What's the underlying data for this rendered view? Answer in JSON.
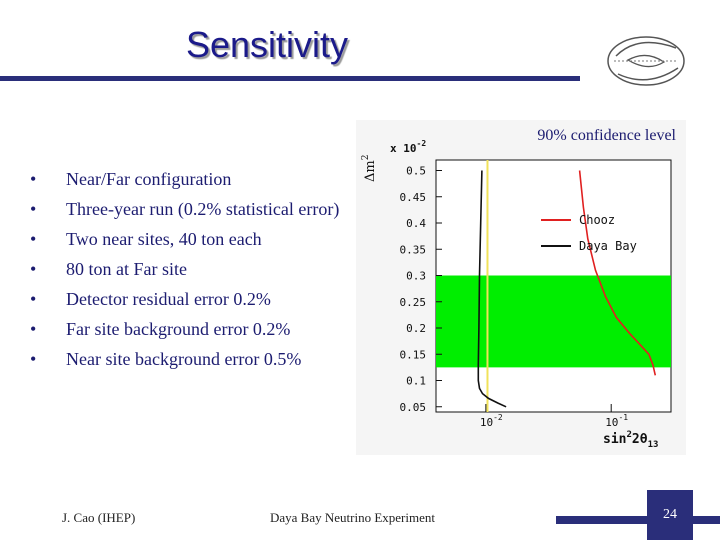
{
  "slide": {
    "title": "Sensitivity",
    "bullets": [
      "Near/Far configuration",
      "Three-year run (0.2% statistical error)",
      "Two near sites, 40 ton each",
      "80 ton at Far site",
      "Detector residual error 0.2%",
      "Far site background error 0.2%",
      "Near site background error 0.5%"
    ],
    "bullet_symbol": "•",
    "footer_author": "J. Cao (IHEP)",
    "footer_center": "Daya Bay Neutrino Experiment",
    "page_number": "24",
    "accent_color": "#2a2e7a",
    "title_color": "#1b1a8a"
  },
  "plot": {
    "confidence_label": "90% confidence level",
    "y_multiplier": "x 10",
    "y_multiplier_exp": "-2",
    "ylabel_main": "Δm",
    "ylabel_sup": "2",
    "xlabel_main": "sin",
    "xlabel_sup": "2",
    "xlabel_rest": "2θ",
    "xlabel_sub": "13"
  },
  "chart_data": {
    "type": "line",
    "title": "",
    "xlabel": "sin²2θ13",
    "ylabel": "Δm² (×10⁻²)",
    "x_scale": "log",
    "xlim": [
      0.004,
      0.3
    ],
    "ylim": [
      0.04,
      0.52
    ],
    "x_ticks": [
      {
        "value": 0.01,
        "base": "10",
        "exp": "-2"
      },
      {
        "value": 0.1,
        "base": "10",
        "exp": "-1"
      }
    ],
    "y_ticks": [
      0.05,
      0.1,
      0.15,
      0.2,
      0.25,
      0.3,
      0.35,
      0.4,
      0.45,
      0.5
    ],
    "y_tick_labels": [
      "0.05",
      "0.1",
      "0.15",
      "0.2",
      "0.25",
      "0.3",
      "0.35",
      "0.4",
      "0.45",
      "0.5"
    ],
    "band": {
      "y_from": 0.125,
      "y_to": 0.3,
      "color": "#00ee00"
    },
    "vline": {
      "x": 0.0103,
      "color": "#f1e25a"
    },
    "series": [
      {
        "name": "Chooz",
        "color": "#e02020",
        "points": [
          [
            0.056,
            0.5
          ],
          [
            0.06,
            0.43
          ],
          [
            0.065,
            0.37
          ],
          [
            0.075,
            0.31
          ],
          [
            0.09,
            0.26
          ],
          [
            0.11,
            0.22
          ],
          [
            0.14,
            0.19
          ],
          [
            0.175,
            0.165
          ],
          [
            0.2,
            0.15
          ],
          [
            0.215,
            0.13
          ],
          [
            0.225,
            0.11
          ]
        ]
      },
      {
        "name": "Daya Bay",
        "color": "#111111",
        "points": [
          [
            0.0093,
            0.5
          ],
          [
            0.0091,
            0.4
          ],
          [
            0.0089,
            0.3
          ],
          [
            0.0088,
            0.2
          ],
          [
            0.0087,
            0.13
          ],
          [
            0.0087,
            0.1
          ],
          [
            0.0089,
            0.085
          ],
          [
            0.0094,
            0.075
          ],
          [
            0.0105,
            0.066
          ],
          [
            0.0125,
            0.057
          ],
          [
            0.0145,
            0.05
          ]
        ]
      }
    ],
    "legend_position": "top-right"
  }
}
